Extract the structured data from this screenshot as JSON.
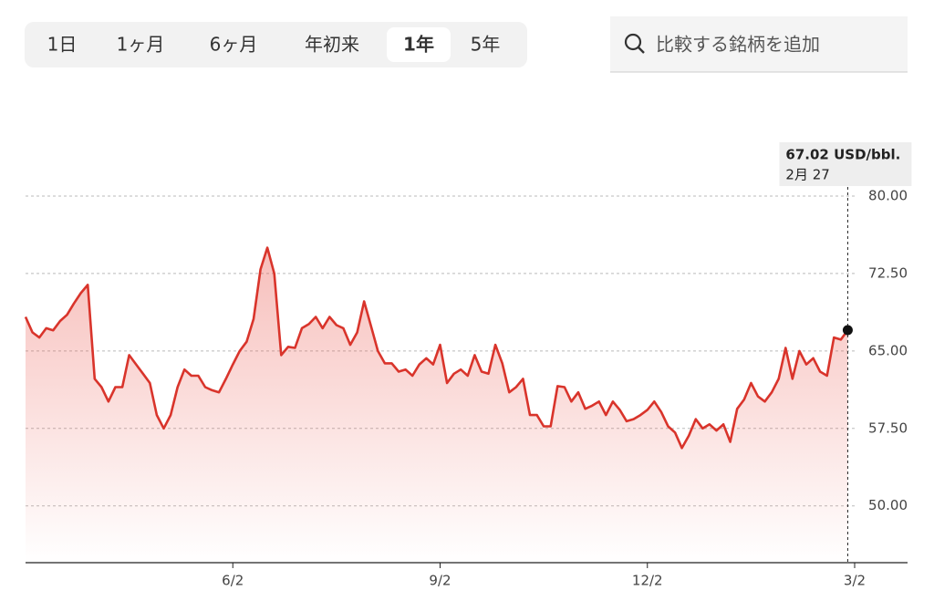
{
  "tabs": {
    "items": [
      "1日",
      "1ヶ月",
      "6ヶ月",
      "年初来",
      "1年",
      "5年"
    ],
    "selected": 4
  },
  "search": {
    "placeholder": "比較する銘柄を追加"
  },
  "chart_data": {
    "type": "line",
    "categories": [
      null,
      null,
      null,
      null,
      null,
      null,
      null,
      null,
      null,
      null,
      null,
      null,
      null,
      null,
      null,
      null,
      null,
      null,
      null,
      null,
      null,
      null,
      null,
      null,
      null,
      null,
      null,
      null,
      null,
      null,
      "6/2",
      null,
      null,
      null,
      null,
      null,
      null,
      null,
      null,
      null,
      null,
      null,
      null,
      null,
      null,
      null,
      null,
      null,
      null,
      null,
      null,
      null,
      null,
      null,
      null,
      null,
      null,
      null,
      null,
      null,
      "9/2",
      null,
      null,
      null,
      null,
      null,
      null,
      null,
      null,
      null,
      null,
      null,
      null,
      null,
      null,
      null,
      null,
      null,
      null,
      null,
      null,
      null,
      null,
      null,
      null,
      null,
      null,
      null,
      null,
      null,
      "12/2",
      null,
      null,
      null,
      null,
      null,
      null,
      null,
      null,
      null,
      null,
      null,
      null,
      null,
      null,
      null,
      null,
      null,
      null,
      null,
      null,
      null,
      null,
      null,
      null,
      null,
      null,
      null,
      null,
      null,
      "3/2"
    ],
    "series": [
      {
        "name": null,
        "color": "#d9342b",
        "values": [
          68.3,
          66.8,
          66.3,
          67.2,
          67.0,
          67.9,
          68.5,
          69.6,
          70.6,
          71.4,
          62.3,
          61.5,
          60.1,
          61.5,
          61.5,
          64.6,
          63.7,
          62.8,
          61.9,
          58.8,
          57.5,
          58.8,
          61.5,
          63.2,
          62.6,
          62.6,
          61.5,
          61.2,
          61.0,
          62.3,
          63.7,
          65.0,
          65.9,
          68.1,
          72.9,
          75.0,
          72.5,
          64.6,
          65.4,
          65.3,
          67.2,
          67.6,
          68.3,
          67.2,
          68.3,
          67.5,
          67.2,
          65.6,
          66.8,
          69.8,
          67.4,
          65.0,
          63.8,
          63.8,
          63.0,
          63.2,
          62.6,
          63.7,
          64.3,
          63.7,
          65.6,
          61.9,
          62.8,
          63.2,
          62.6,
          64.6,
          63.0,
          62.8,
          65.6,
          63.8,
          61.0,
          61.5,
          62.3,
          58.8,
          58.8,
          57.7,
          57.7,
          61.6,
          61.5,
          60.1,
          61.0,
          59.4,
          59.7,
          60.1,
          58.8,
          60.1,
          59.3,
          58.2,
          58.4,
          58.8,
          59.3,
          60.1,
          59.1,
          57.7,
          57.1,
          55.6,
          56.8,
          58.4,
          57.5,
          57.9,
          57.3,
          57.9,
          56.2,
          59.4,
          60.3,
          61.9,
          60.6,
          60.1,
          61.0,
          62.3,
          65.3,
          62.3,
          65.0,
          63.7,
          64.3,
          63.0,
          62.6,
          66.3,
          66.1,
          67.02,
          null
        ]
      }
    ],
    "ylim": [
      44.5,
      80
    ],
    "yticks": [
      {
        "value": 80,
        "label": "80.00"
      },
      {
        "value": 72.5,
        "label": "72.50"
      },
      {
        "value": 65,
        "label": "65.00"
      },
      {
        "value": 57.5,
        "label": "57.50"
      },
      {
        "value": 50,
        "label": "50.00"
      }
    ],
    "grid": true,
    "tooltip": {
      "label": "67.02 USD/bbl.",
      "date": "2月 27"
    }
  }
}
